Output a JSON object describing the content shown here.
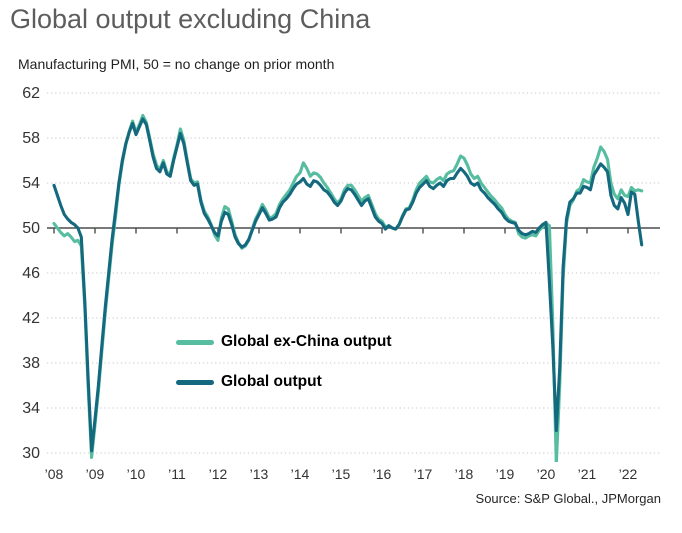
{
  "header": {
    "title": "Global output excluding China",
    "subtitle": "Manufacturing PMI, 50 = no change on prior month"
  },
  "footer": {
    "source": "Source: S&P Global., JPMorgan"
  },
  "colors": {
    "ex_china_line": "#57bda0",
    "global_line": "#14697e",
    "grid": "#c9c9c9",
    "axis": "#4d4d4d",
    "title_text": "#5d5d5d",
    "label_text": "#333333"
  },
  "chart_data": {
    "type": "line",
    "title": "Global output excluding China",
    "subtitle": "Manufacturing PMI, 50 = no change on prior month",
    "x_unit": "month",
    "x_start": "2008-01",
    "x_end": "2022-05",
    "x_tick_labels": [
      "’08",
      "’09",
      "’10",
      "’11",
      "’12",
      "’13",
      "’14",
      "’15",
      "’16",
      "’17",
      "’18",
      "’19",
      "’20",
      "’21",
      "’22"
    ],
    "y_ticks": [
      62,
      58,
      54,
      50,
      46,
      42,
      38,
      34,
      30
    ],
    "ylim": [
      29,
      62
    ],
    "baseline_value": 50,
    "grid": "dotted",
    "legend_position": "inside-center-left",
    "series": [
      {
        "name": "Global ex-China output",
        "color": "#57bda0",
        "values": [
          50.4,
          50.0,
          49.6,
          49.3,
          49.5,
          49.2,
          48.8,
          48.9,
          48.4,
          43.0,
          35.8,
          29.6,
          32.5,
          35.5,
          39.0,
          42.5,
          45.5,
          48.5,
          51.0,
          53.8,
          55.8,
          57.4,
          58.6,
          59.5,
          58.5,
          59.2,
          60.0,
          59.4,
          58.0,
          56.6,
          55.6,
          55.2,
          56.0,
          55.0,
          54.8,
          56.2,
          57.4,
          58.8,
          57.8,
          56.0,
          54.4,
          54.0,
          54.1,
          52.5,
          51.5,
          51.0,
          50.3,
          49.4,
          48.9,
          50.9,
          51.9,
          51.7,
          50.6,
          49.4,
          48.7,
          48.2,
          48.4,
          48.9,
          49.9,
          50.8,
          51.4,
          52.1,
          51.6,
          50.9,
          51.0,
          51.3,
          52.1,
          52.6,
          53.0,
          53.4,
          54.0,
          54.6,
          54.9,
          55.8,
          55.3,
          54.6,
          54.9,
          54.8,
          54.5,
          54.0,
          53.6,
          53.1,
          52.6,
          52.2,
          52.6,
          53.4,
          53.8,
          53.8,
          53.4,
          52.9,
          52.4,
          52.7,
          52.9,
          52.1,
          51.3,
          50.8,
          50.6,
          50.1,
          50.2,
          50.0,
          49.9,
          50.3,
          51.1,
          51.7,
          51.8,
          52.5,
          53.4,
          54.0,
          54.3,
          54.6,
          54.1,
          54.0,
          54.3,
          54.5,
          54.2,
          54.8,
          55.0,
          55.1,
          55.7,
          56.4,
          56.2,
          55.6,
          54.8,
          54.4,
          54.6,
          54.0,
          53.6,
          53.2,
          52.8,
          52.5,
          52.1,
          51.8,
          51.2,
          50.8,
          50.6,
          50.5,
          49.5,
          49.2,
          49.1,
          49.3,
          49.4,
          49.3,
          49.8,
          50.1,
          50.4,
          50.2,
          41.5,
          29.0,
          36.0,
          45.5,
          50.4,
          52.0,
          52.5,
          53.3,
          53.5,
          54.3,
          54.1,
          54.0,
          55.4,
          56.2,
          57.2,
          56.8,
          56.1,
          54.0,
          53.0,
          52.6,
          53.4,
          52.9,
          52.8,
          53.6,
          53.3,
          53.4,
          53.3
        ]
      },
      {
        "name": "Global output",
        "color": "#14697e",
        "values": [
          53.8,
          52.9,
          52.0,
          51.2,
          50.8,
          50.5,
          50.3,
          50.0,
          49.2,
          43.5,
          36.5,
          30.2,
          33.0,
          36.0,
          39.5,
          43.0,
          46.0,
          49.0,
          51.5,
          54.0,
          56.0,
          57.5,
          58.5,
          59.3,
          58.3,
          59.0,
          59.7,
          59.2,
          57.8,
          56.3,
          55.3,
          55.0,
          55.8,
          54.8,
          54.6,
          56.0,
          57.2,
          58.4,
          57.5,
          55.8,
          54.2,
          53.8,
          53.9,
          52.3,
          51.3,
          50.8,
          50.2,
          49.6,
          49.3,
          50.6,
          51.4,
          51.2,
          50.3,
          49.2,
          48.6,
          48.3,
          48.5,
          49.0,
          49.8,
          50.6,
          51.2,
          51.8,
          51.3,
          50.7,
          50.8,
          51.0,
          51.8,
          52.3,
          52.6,
          53.0,
          53.5,
          53.9,
          54.1,
          54.4,
          53.9,
          53.7,
          54.2,
          54.1,
          53.8,
          53.4,
          53.2,
          52.8,
          52.3,
          52.0,
          52.4,
          53.1,
          53.5,
          53.4,
          53.0,
          52.5,
          52.0,
          52.4,
          52.6,
          51.8,
          51.0,
          50.6,
          50.4,
          49.9,
          50.2,
          50.0,
          49.9,
          50.3,
          51.0,
          51.6,
          51.7,
          52.3,
          53.1,
          53.6,
          53.9,
          54.2,
          53.7,
          53.5,
          53.8,
          54.0,
          53.7,
          54.2,
          54.4,
          54.4,
          54.9,
          55.3,
          55.0,
          54.6,
          54.0,
          53.8,
          54.0,
          53.4,
          53.1,
          52.7,
          52.4,
          52.1,
          51.7,
          51.4,
          50.9,
          50.6,
          50.5,
          50.4,
          49.8,
          49.5,
          49.4,
          49.5,
          49.7,
          49.6,
          50.0,
          50.3,
          50.5,
          45.2,
          39.5,
          32.0,
          37.5,
          46.5,
          50.8,
          52.3,
          52.6,
          53.1,
          53.1,
          53.7,
          53.6,
          53.4,
          54.7,
          55.2,
          55.7,
          55.4,
          55.0,
          52.9,
          52.0,
          51.7,
          52.7,
          52.2,
          51.2,
          53.2,
          53.0,
          50.6,
          48.5
        ]
      }
    ]
  }
}
